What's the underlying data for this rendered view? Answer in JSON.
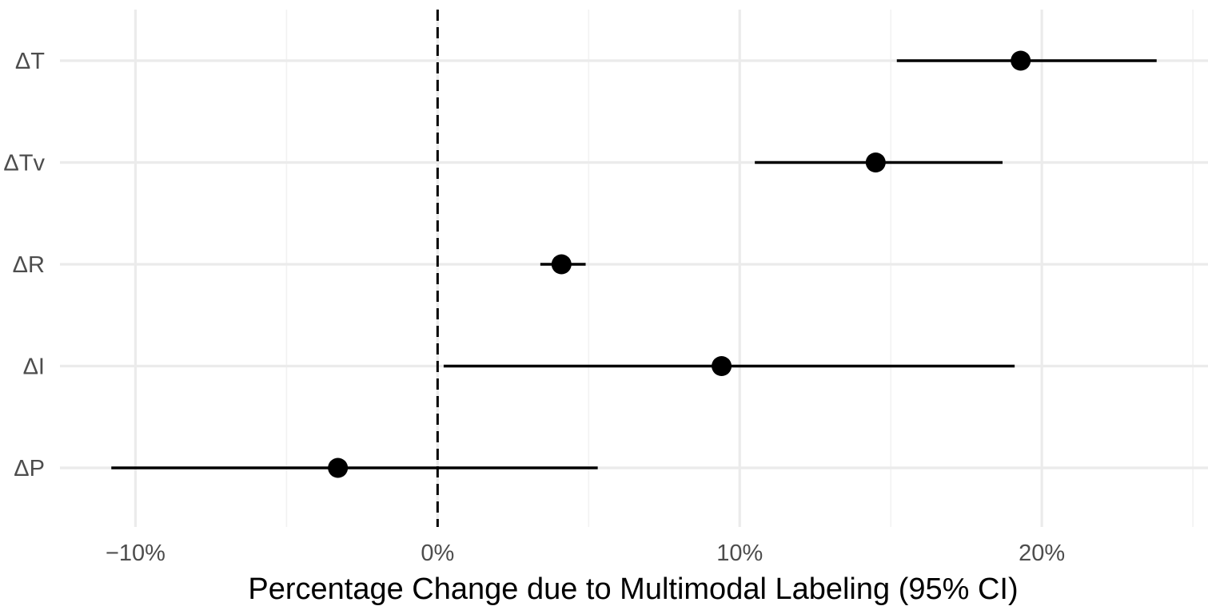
{
  "chart_data": {
    "type": "scatter",
    "subtype": "forest-plot",
    "title": "",
    "xlabel": "Percentage Change due to Multimodal Labeling (95% CI)",
    "ylabel": "",
    "xlim": [
      -12.5,
      25.5
    ],
    "x_ticks": [
      -10,
      0,
      10,
      20
    ],
    "x_tick_labels": [
      "−10%",
      "0%",
      "10%",
      "20%"
    ],
    "reference_line": {
      "x": 0,
      "style": "dashed",
      "color": "#000000"
    },
    "grid": true,
    "legend": "none",
    "point_color": "#000000",
    "grid_major_color": "#ebebeb",
    "grid_minor_color": "#f2f2f2",
    "categories": [
      "ΔT",
      "ΔTv",
      "ΔR",
      "ΔI",
      "ΔP"
    ],
    "points": [
      {
        "label": "ΔT",
        "estimate": 19.3,
        "ci_low": 15.2,
        "ci_high": 23.8
      },
      {
        "label": "ΔTv",
        "estimate": 14.5,
        "ci_low": 10.5,
        "ci_high": 18.7
      },
      {
        "label": "ΔR",
        "estimate": 4.1,
        "ci_low": 3.4,
        "ci_high": 4.9
      },
      {
        "label": "ΔI",
        "estimate": 9.4,
        "ci_low": 0.2,
        "ci_high": 19.1
      },
      {
        "label": "ΔP",
        "estimate": -3.3,
        "ci_low": -10.8,
        "ci_high": 5.3
      }
    ]
  }
}
